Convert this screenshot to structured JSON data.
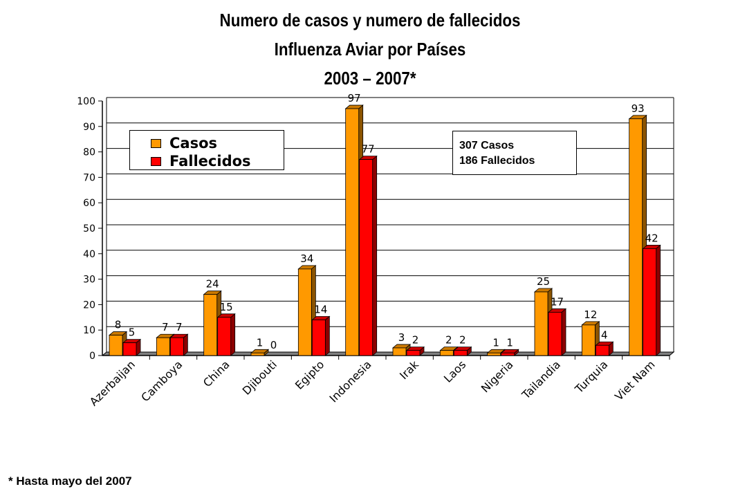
{
  "title": {
    "line1": "Numero de casos y numero de fallecidos",
    "line2": "Influenza Aviar por Países",
    "line3": "2003  –  2007*"
  },
  "footnote": "* Hasta mayo del 2007",
  "summary": {
    "casos": "307 Casos",
    "fallecidos": "186 Fallecidos"
  },
  "colors": {
    "casos": "#FF9900",
    "fallecidos": "#FF0000",
    "axis_floor": "#808080"
  },
  "chart_data": {
    "type": "bar",
    "title": "Numero de casos y numero de fallecidos Influenza Aviar por Países 2003 – 2007*",
    "categories": [
      "Azerbaijan",
      "Camboya",
      "China",
      "Djibouti",
      "Egipto",
      "Indonesia",
      "Irak",
      "Laos",
      "Nigeria",
      "Tailandia",
      "Turquia",
      "Viet Nam"
    ],
    "series": [
      {
        "name": "Casos",
        "values": [
          8,
          7,
          24,
          1,
          34,
          97,
          3,
          2,
          1,
          25,
          12,
          93
        ]
      },
      {
        "name": "Fallecidos",
        "values": [
          5,
          7,
          15,
          0,
          14,
          77,
          2,
          2,
          1,
          17,
          4,
          42
        ]
      }
    ],
    "yticks": [
      0,
      10,
      20,
      30,
      40,
      50,
      60,
      70,
      80,
      90,
      100
    ],
    "ylim": [
      0,
      100
    ],
    "grid": true,
    "legend_position": "top-left",
    "data_labels": true
  }
}
